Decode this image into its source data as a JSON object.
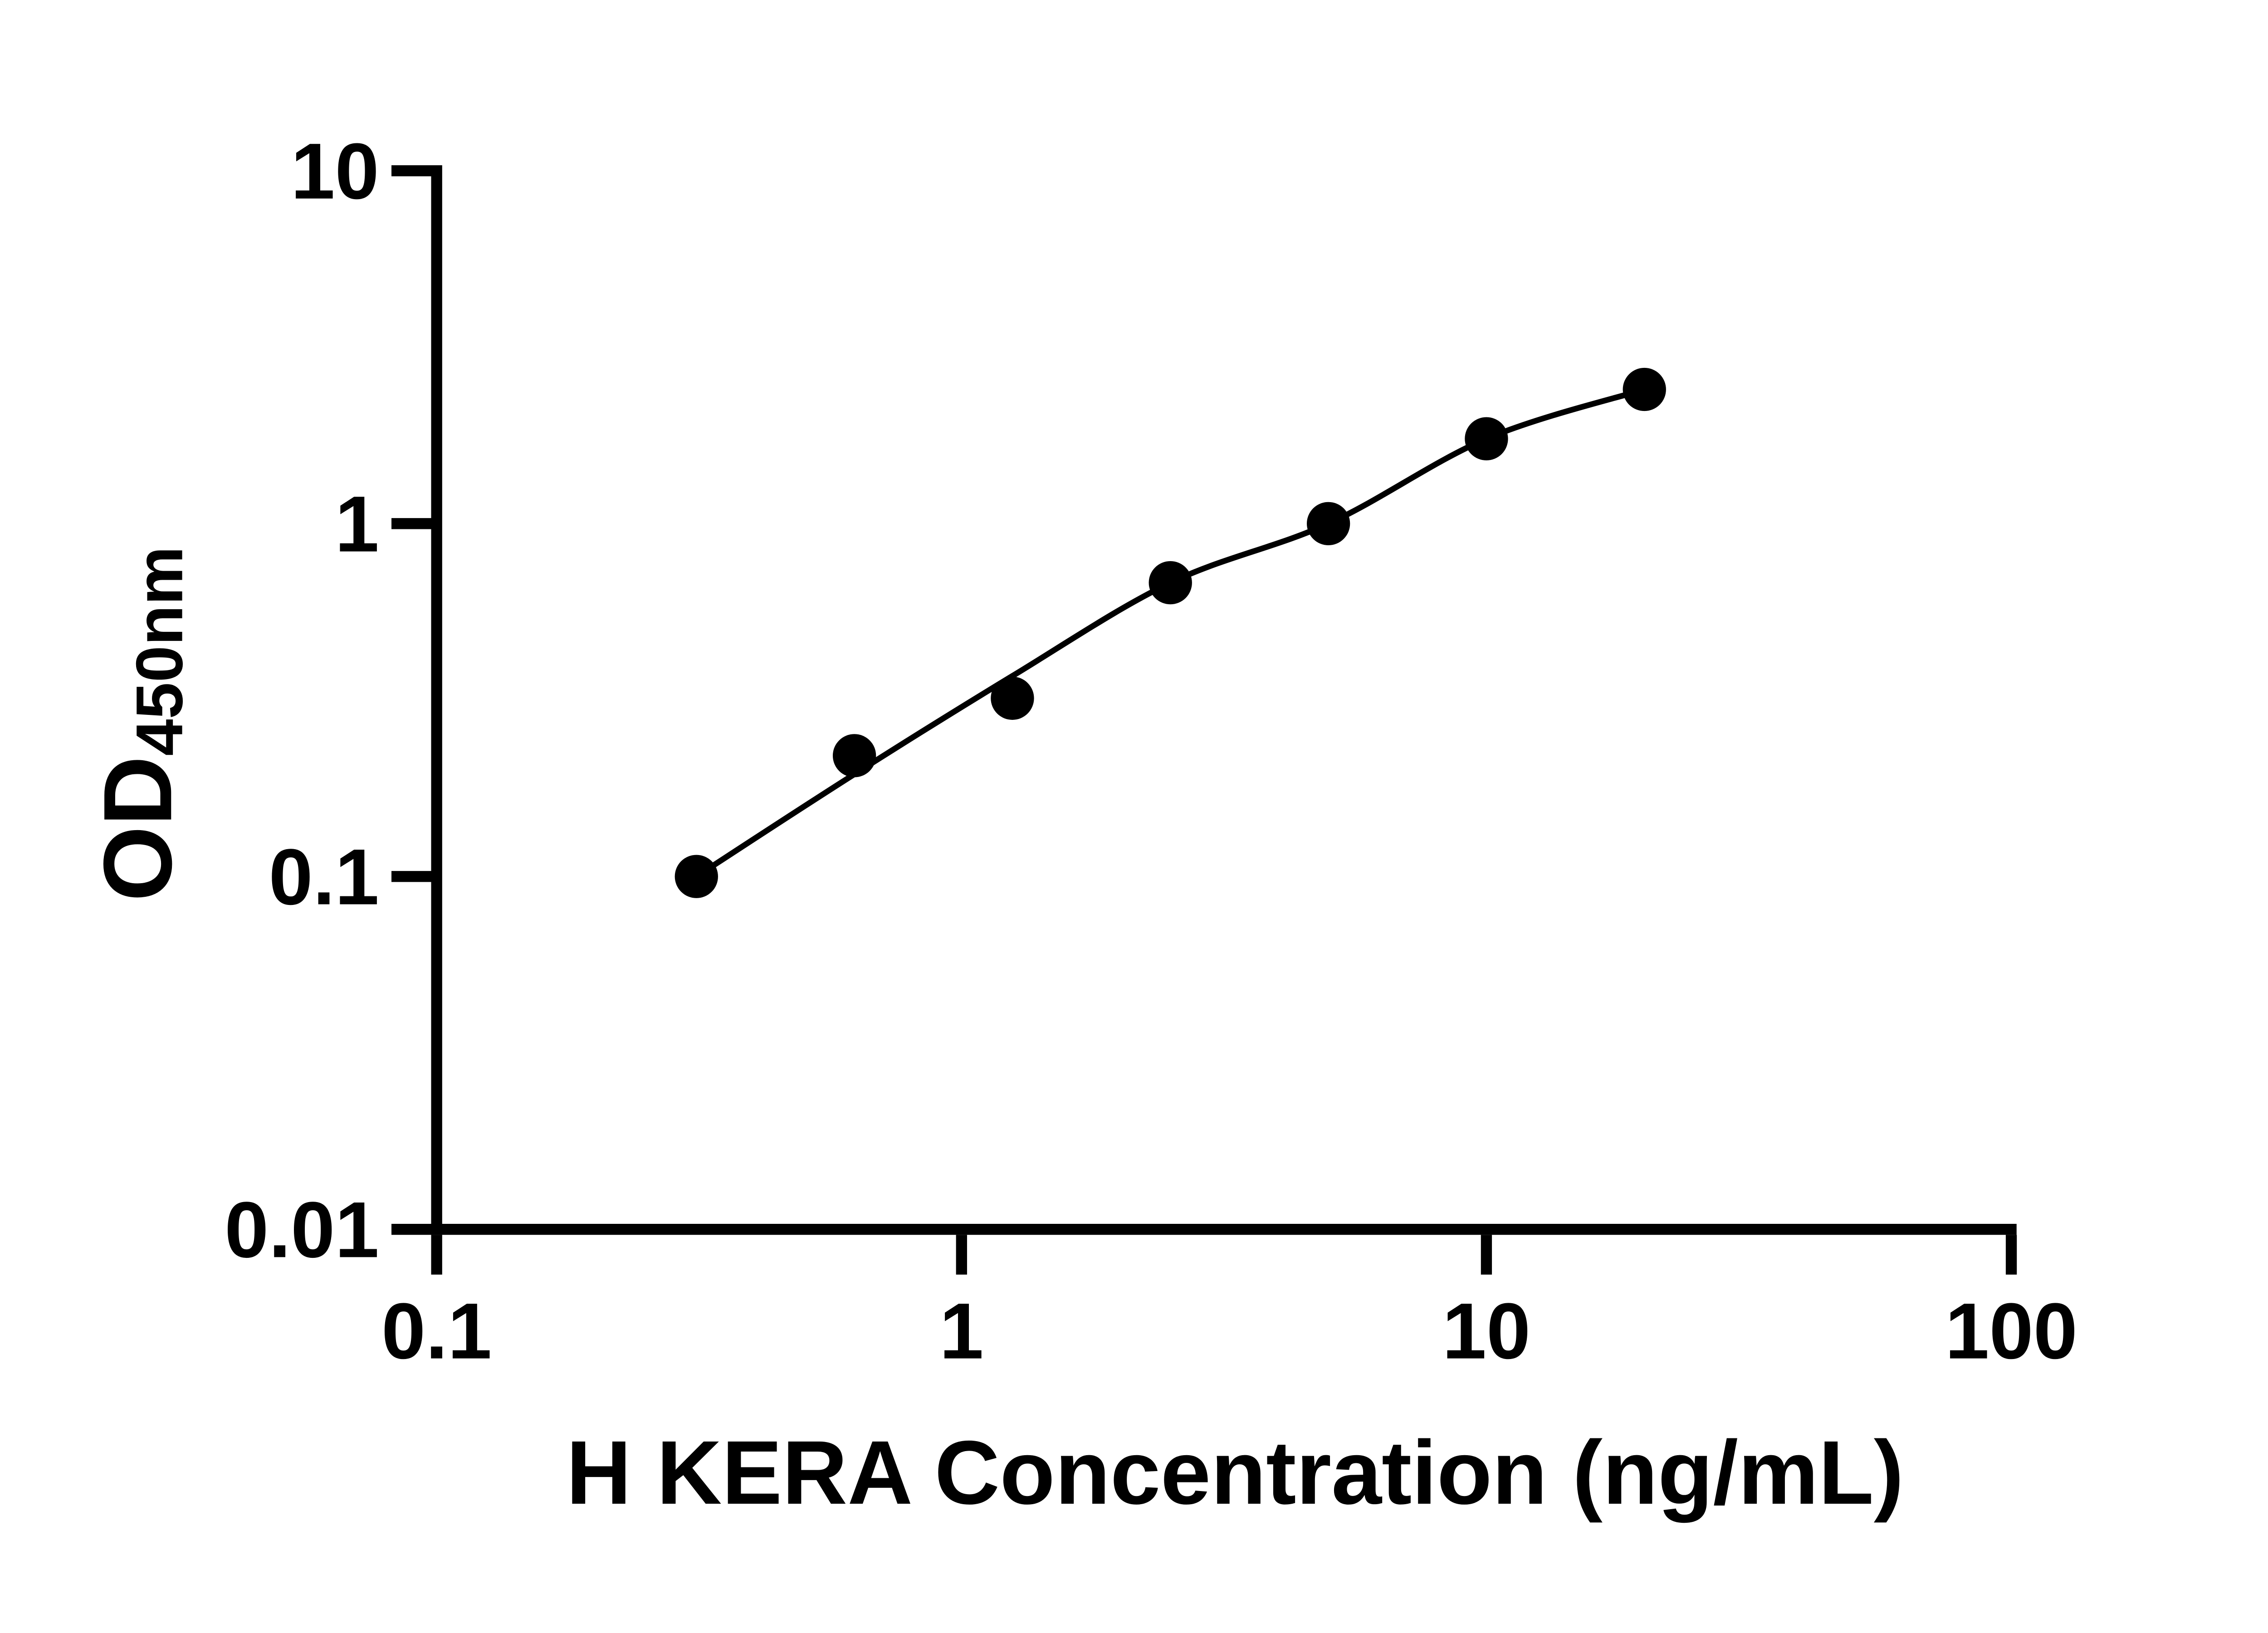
{
  "figure": {
    "background_color": "#ffffff",
    "ink_color": "#000000"
  },
  "chart_data": {
    "type": "scatter",
    "title": "",
    "xlabel": "H KERA Concentration (ng/mL)",
    "ylabel_main": "OD",
    "ylabel_sub": "450nm",
    "x_scale": "log",
    "y_scale": "log",
    "xlim": [
      0.1,
      100
    ],
    "ylim": [
      0.01,
      10
    ],
    "x_tick_values": [
      0.1,
      1,
      10,
      100
    ],
    "x_tick_labels": [
      "0.1",
      "1",
      "10",
      "100"
    ],
    "y_tick_values": [
      10,
      1,
      0.1,
      0.01
    ],
    "y_tick_labels": [
      "10",
      "1",
      "0.1",
      "0.01"
    ],
    "grid": false,
    "legend": "none",
    "series": [
      {
        "name": "standard-points",
        "kind": "scatter",
        "marker": "filled-circle",
        "color": "#000000",
        "x": [
          0.3125,
          0.625,
          1.25,
          2.5,
          5,
          10,
          20
        ],
        "y": [
          0.1,
          0.22,
          0.32,
          0.68,
          1.0,
          1.74,
          2.4
        ]
      },
      {
        "name": "fitted-curve",
        "kind": "line",
        "color": "#000000",
        "x": [
          0.3125,
          0.625,
          1.25,
          2.5,
          5,
          10,
          20
        ],
        "y": [
          0.1,
          0.195,
          0.37,
          0.68,
          1.0,
          1.74,
          2.4
        ]
      }
    ]
  }
}
